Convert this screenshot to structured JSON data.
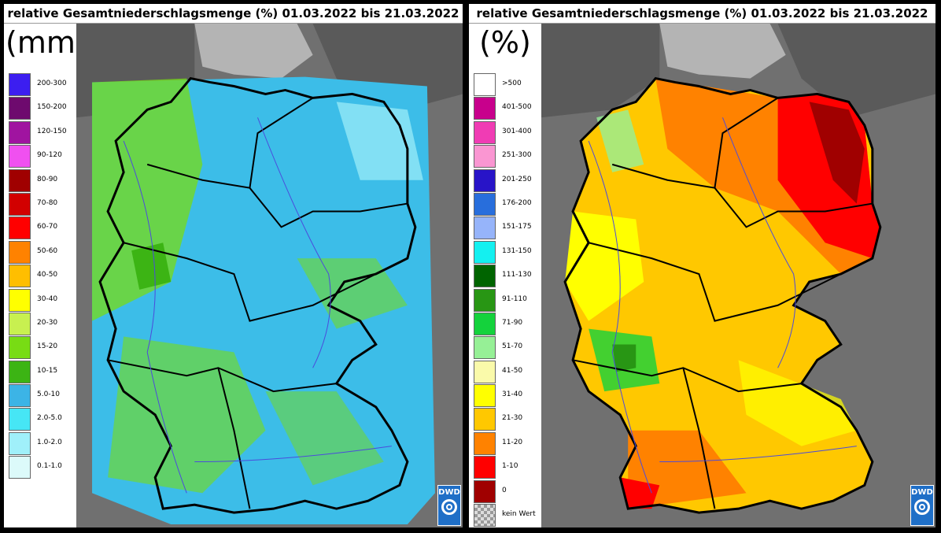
{
  "panels": [
    {
      "title": "relative Gesamtniederschlagsmenge (%) 01.03.2022 bis 21.03.2022",
      "unit": "(mm)",
      "legend": [
        {
          "label": "200-300",
          "color": "#3c1ef0"
        },
        {
          "label": "150-200",
          "color": "#6e0a6e"
        },
        {
          "label": "120-150",
          "color": "#a014a0"
        },
        {
          "label": "90-120",
          "color": "#f050f0"
        },
        {
          "label": "80-90",
          "color": "#a00000"
        },
        {
          "label": "70-80",
          "color": "#d20000"
        },
        {
          "label": "60-70",
          "color": "#ff0000"
        },
        {
          "label": "50-60",
          "color": "#ff8200"
        },
        {
          "label": "40-50",
          "color": "#ffbe00"
        },
        {
          "label": "30-40",
          "color": "#ffff00"
        },
        {
          "label": "20-30",
          "color": "#c8f050"
        },
        {
          "label": "15-20",
          "color": "#78dc14"
        },
        {
          "label": "10-15",
          "color": "#3cb414"
        },
        {
          "label": "5.0-10",
          "color": "#3cb4e6"
        },
        {
          "label": "2.0-5.0",
          "color": "#46e6f5"
        },
        {
          "label": "1.0-2.0",
          "color": "#a0f0fa"
        },
        {
          "label": "0.1-1.0",
          "color": "#dcfafa"
        }
      ],
      "logo": "DWD"
    },
    {
      "title": "relative Gesamtniederschlagsmenge (%) 01.03.2022 bis 21.03.2022",
      "unit": "(%)",
      "legend": [
        {
          "label": ">500",
          "color": "#ffffff"
        },
        {
          "label": "401-500",
          "color": "#c8008c"
        },
        {
          "label": "301-400",
          "color": "#f03cb4"
        },
        {
          "label": "251-300",
          "color": "#fa96d2"
        },
        {
          "label": "201-250",
          "color": "#2814c8"
        },
        {
          "label": "176-200",
          "color": "#286edc"
        },
        {
          "label": "151-175",
          "color": "#96b4fa"
        },
        {
          "label": "131-150",
          "color": "#14f0f0"
        },
        {
          "label": "111-130",
          "color": "#006400"
        },
        {
          "label": "91-110",
          "color": "#289614"
        },
        {
          "label": "71-90",
          "color": "#14d23c"
        },
        {
          "label": "51-70",
          "color": "#96f096"
        },
        {
          "label": "41-50",
          "color": "#fafaaa"
        },
        {
          "label": "31-40",
          "color": "#ffff00"
        },
        {
          "label": "21-30",
          "color": "#ffc800"
        },
        {
          "label": "11-20",
          "color": "#ff8200"
        },
        {
          "label": "1-10",
          "color": "#ff0000"
        },
        {
          "label": "0",
          "color": "#a00000"
        },
        {
          "label": "kein Wert",
          "color": "checker"
        }
      ],
      "logo": "DWD"
    }
  ],
  "map_colors": {
    "background_land": "#6f6f6f",
    "sea": "#4d4d4d",
    "border": "#000000",
    "rivers": "#4b4bdc"
  }
}
